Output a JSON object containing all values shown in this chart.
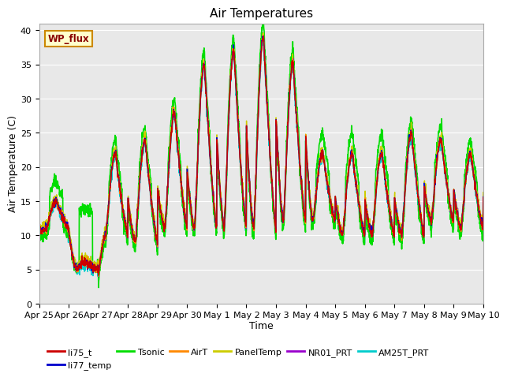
{
  "title": "Air Temperatures",
  "xlabel": "Time",
  "ylabel": "Air Temperature (C)",
  "ylim": [
    0,
    41
  ],
  "yticks": [
    0,
    5,
    10,
    15,
    20,
    25,
    30,
    35,
    40
  ],
  "bg_color": "#e8e8e8",
  "series": {
    "li75_t": {
      "color": "#cc0000",
      "lw": 1.0
    },
    "li77_temp": {
      "color": "#0000cc",
      "lw": 1.0
    },
    "Tsonic": {
      "color": "#00dd00",
      "lw": 1.2
    },
    "AirT": {
      "color": "#ff8800",
      "lw": 1.0
    },
    "PanelTemp": {
      "color": "#cccc00",
      "lw": 1.0
    },
    "NR01_PRT": {
      "color": "#9900cc",
      "lw": 1.0
    },
    "AM25T_PRT": {
      "color": "#00cccc",
      "lw": 1.2
    }
  },
  "x_tick_labels": [
    "Apr 25",
    "Apr 26",
    "Apr 27",
    "Apr 28",
    "Apr 29",
    "Apr 30",
    "May 1",
    "May 2",
    "May 3",
    "May 4",
    "May 5",
    "May 6",
    "May 7",
    "May 8",
    "May 9",
    "May 10"
  ],
  "n_days": 15,
  "pts_per_day": 144,
  "day_peaks": [
    15,
    6,
    22,
    24,
    28,
    35,
    37,
    39,
    35,
    22,
    22,
    22,
    25,
    24,
    22,
    20
  ],
  "day_mins": [
    11,
    5,
    10,
    9,
    11,
    11,
    11,
    11,
    12,
    12,
    10,
    10,
    10,
    12,
    11,
    15
  ],
  "tsonic_extra_day": [
    3,
    8,
    2,
    2,
    2,
    2,
    2,
    2,
    2,
    3,
    3,
    3,
    2,
    2,
    2,
    2
  ],
  "tsonic_extra_night": [
    -1,
    0,
    -1,
    -1,
    -1,
    -1,
    -1,
    -1,
    -1,
    -1,
    -1,
    -1,
    -1,
    -1,
    -1,
    -1
  ]
}
